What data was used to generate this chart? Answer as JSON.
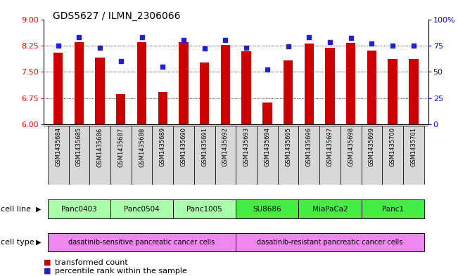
{
  "title": "GDS5627 / ILMN_2306066",
  "samples": [
    "GSM1435684",
    "GSM1435685",
    "GSM1435686",
    "GSM1435687",
    "GSM1435688",
    "GSM1435689",
    "GSM1435690",
    "GSM1435691",
    "GSM1435692",
    "GSM1435693",
    "GSM1435694",
    "GSM1435695",
    "GSM1435696",
    "GSM1435697",
    "GSM1435698",
    "GSM1435699",
    "GSM1435700",
    "GSM1435701"
  ],
  "transformed_count": [
    8.05,
    8.35,
    7.9,
    6.87,
    8.35,
    6.92,
    8.35,
    7.77,
    8.27,
    8.08,
    6.62,
    7.83,
    8.3,
    8.18,
    8.32,
    8.1,
    7.87,
    7.87
  ],
  "percentile_rank": [
    75,
    83,
    73,
    60,
    83,
    55,
    80,
    72,
    80,
    73,
    52,
    74,
    83,
    78,
    82,
    77,
    75,
    75
  ],
  "cell_lines": [
    {
      "name": "Panc0403",
      "start": 0,
      "end": 2,
      "color": "#aaffaa"
    },
    {
      "name": "Panc0504",
      "start": 3,
      "end": 5,
      "color": "#aaffaa"
    },
    {
      "name": "Panc1005",
      "start": 6,
      "end": 8,
      "color": "#aaffaa"
    },
    {
      "name": "SU8686",
      "start": 9,
      "end": 11,
      "color": "#44ee44"
    },
    {
      "name": "MiaPaCa2",
      "start": 12,
      "end": 14,
      "color": "#44ee44"
    },
    {
      "name": "Panc1",
      "start": 15,
      "end": 17,
      "color": "#44ee44"
    }
  ],
  "cell_types": [
    {
      "name": "dasatinib-sensitive pancreatic cancer cells",
      "start": 0,
      "end": 8,
      "color": "#ee88ee"
    },
    {
      "name": "dasatinib-resistant pancreatic cancer cells",
      "start": 9,
      "end": 17,
      "color": "#ee88ee"
    }
  ],
  "ylim_left": [
    6,
    9
  ],
  "ylim_right": [
    0,
    100
  ],
  "yticks_left": [
    6,
    6.75,
    7.5,
    8.25,
    9
  ],
  "yticks_right": [
    0,
    25,
    50,
    75,
    100
  ],
  "bar_color": "#cc0000",
  "dot_color": "#2222cc",
  "bar_width": 0.45,
  "legend_red": "transformed count",
  "legend_blue": "percentile rank within the sample",
  "label_cell_line": "cell line",
  "label_cell_type": "cell type"
}
